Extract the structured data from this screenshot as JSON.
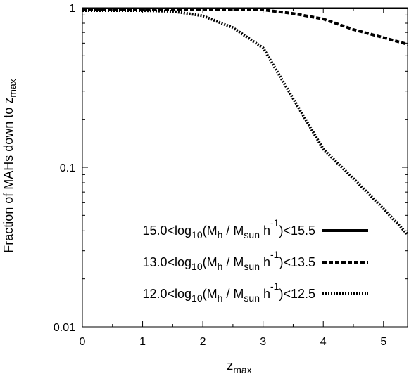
{
  "chart_data": {
    "type": "line",
    "xlabel": {
      "base": "z",
      "sub": "max"
    },
    "ylabel": {
      "main": "Fraction of MAHs down to z",
      "sub": "max"
    },
    "xlim": [
      0,
      5.4
    ],
    "ylim": [
      0.01,
      1
    ],
    "y_scale": "log",
    "grid": false,
    "legend_position": "bottom-right",
    "x_ticks": [
      {
        "value": 0,
        "label": "0"
      },
      {
        "value": 1,
        "label": "1"
      },
      {
        "value": 2,
        "label": "2"
      },
      {
        "value": 3,
        "label": "3"
      },
      {
        "value": 4,
        "label": "4"
      },
      {
        "value": 5,
        "label": "5"
      }
    ],
    "y_ticks": [
      {
        "value": 1,
        "label": "1"
      },
      {
        "value": 0.1,
        "label": "0.1"
      },
      {
        "value": 0.01,
        "label": "0.01"
      }
    ],
    "series": [
      {
        "name_parts": [
          "15.0<log",
          "10",
          "(M",
          "h",
          " / M",
          "sun",
          " h",
          "-1",
          ")<15.5"
        ],
        "style": "solid",
        "color": "#000000",
        "x": [
          0,
          0.5,
          1,
          1.5,
          2,
          2.5,
          3,
          3.5,
          4,
          4.5,
          5,
          5.4
        ],
        "y": [
          1,
          1,
          1,
          1,
          1,
          1,
          1,
          1,
          1,
          1,
          1,
          1
        ]
      },
      {
        "name_parts": [
          "13.0<log",
          "10",
          "(M",
          "h",
          " / M",
          "sun",
          " h",
          "-1",
          ")<13.5"
        ],
        "style": "dashed",
        "color": "#000000",
        "x": [
          0,
          0.5,
          1,
          1.5,
          2,
          2.5,
          3,
          3.5,
          4,
          4.5,
          5,
          5.4
        ],
        "y": [
          0.98,
          0.98,
          0.98,
          0.98,
          0.98,
          0.98,
          0.97,
          0.92,
          0.85,
          0.73,
          0.65,
          0.59
        ]
      },
      {
        "name_parts": [
          "12.0<log",
          "10",
          "(M",
          "h",
          " / M",
          "sun",
          " h",
          "-1",
          ")<12.5"
        ],
        "style": "dotted",
        "color": "#000000",
        "x": [
          0,
          0.5,
          1,
          1.5,
          2,
          2.5,
          3,
          3.5,
          4,
          4.5,
          5,
          5.4
        ],
        "y": [
          0.96,
          0.96,
          0.96,
          0.95,
          0.89,
          0.75,
          0.56,
          0.27,
          0.13,
          0.085,
          0.055,
          0.038
        ]
      }
    ]
  }
}
